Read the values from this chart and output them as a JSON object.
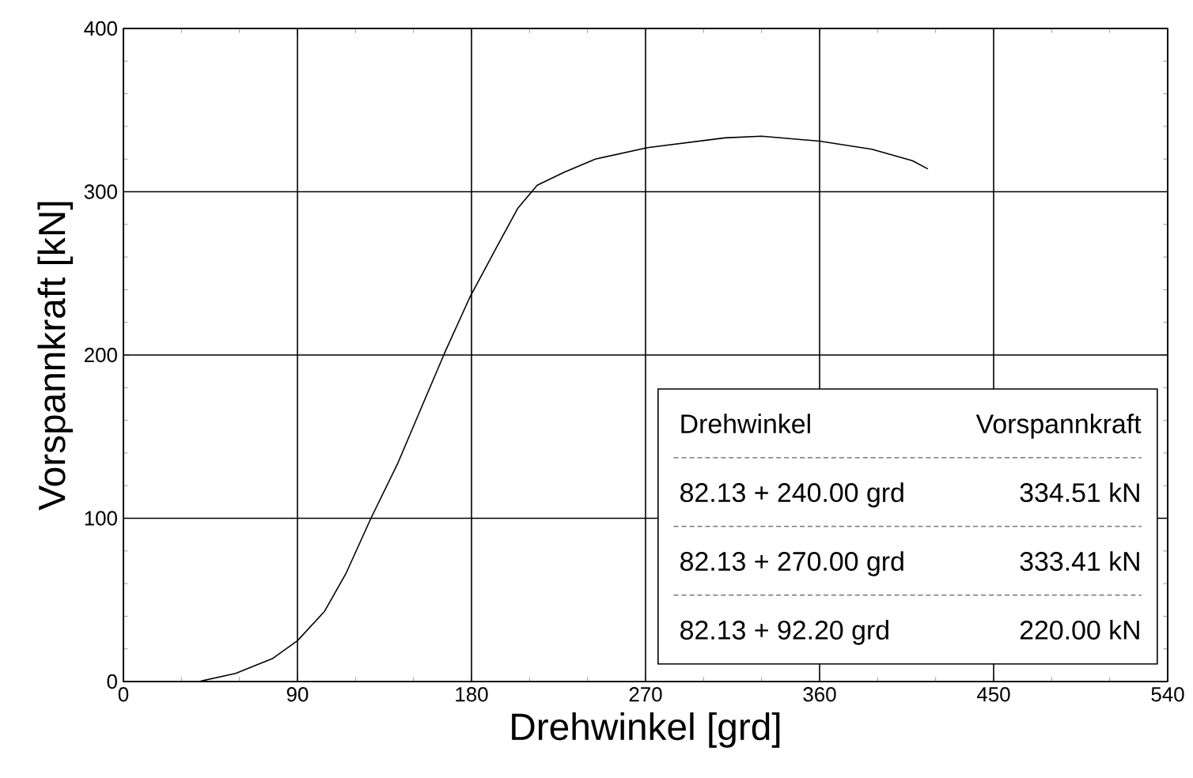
{
  "chart_data": {
    "type": "line",
    "xlabel": "Drehwinkel [grd]",
    "ylabel": "Vorspannkraft [kN]",
    "x": [
      39,
      58,
      77,
      90,
      104,
      115,
      128,
      142,
      152,
      166,
      179,
      193,
      204,
      214,
      228,
      244,
      271,
      311,
      330,
      360,
      387,
      408,
      416
    ],
    "values": [
      0,
      5,
      14,
      25,
      43,
      66,
      100,
      134,
      162,
      201,
      235,
      266,
      290,
      304,
      312,
      320,
      327,
      333,
      334,
      331,
      326,
      319,
      314
    ],
    "color": "#000000",
    "xlim": [
      0,
      540
    ],
    "xticks": [
      0,
      90,
      180,
      270,
      360,
      450,
      540
    ],
    "ylim": [
      0,
      400
    ],
    "yticks": [
      0,
      100,
      200,
      300,
      400
    ],
    "grid": true,
    "marker": "none",
    "line_style": "solid",
    "annotations": [
      "Drehwinkel",
      "Vorspannkraft",
      "82.13 + 240.00 grd",
      "334.51 kN",
      "82.13 + 270.00 grd",
      "333.41 kN",
      "82.13 +  92.20 grd",
      "220.00 kN"
    ]
  }
}
